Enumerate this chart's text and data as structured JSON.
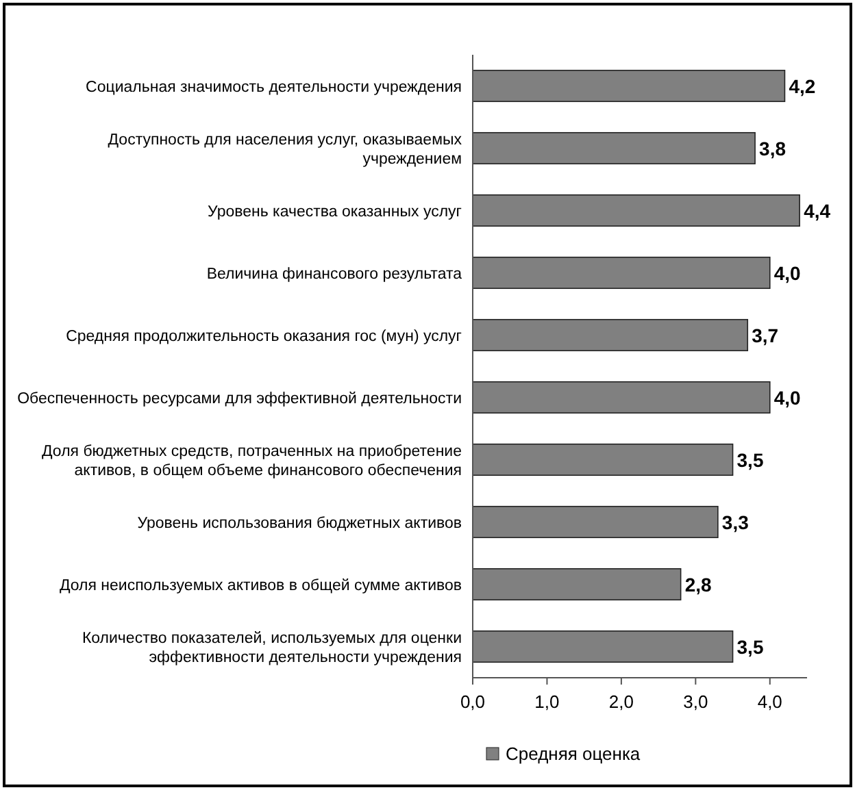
{
  "chart_data": {
    "type": "bar",
    "orientation": "horizontal",
    "categories": [
      "Социальная значимость деятельности учреждения",
      "Доступность для населения услуг, оказываемых учреждением",
      "Уровень качества оказанных услуг",
      "Величина финансового результата",
      "Средняя продолжительность оказания гос (мун) услуг",
      "Обеспеченность ресурсами для эффективной деятельности",
      "Доля бюджетных средств, потраченных на приобретение активов, в общем объеме финансового обеспечения",
      "Уровень использования бюджетных активов",
      "Доля неиспользуемых активов в общей сумме активов",
      "Количество показателей, используемых для оценки эффективности деятельности учреждения"
    ],
    "series": [
      {
        "name": "Средняя оценка",
        "color": "#808080",
        "values": [
          4.2,
          3.8,
          4.4,
          4.0,
          3.7,
          4.0,
          3.5,
          3.3,
          2.8,
          3.5
        ],
        "value_labels": [
          "4,2",
          "3,8",
          "4,4",
          "4,0",
          "3,7",
          "4,0",
          "3,5",
          "3,3",
          "2,8",
          "3,5"
        ]
      }
    ],
    "xlim": [
      0,
      4.5
    ],
    "xticks": [
      {
        "value": 0,
        "label": "0,0"
      },
      {
        "value": 1,
        "label": "1,0"
      },
      {
        "value": 2,
        "label": "2,0"
      },
      {
        "value": 3,
        "label": "3,0"
      },
      {
        "value": 4,
        "label": "4,0"
      }
    ],
    "legend": "bottom"
  }
}
